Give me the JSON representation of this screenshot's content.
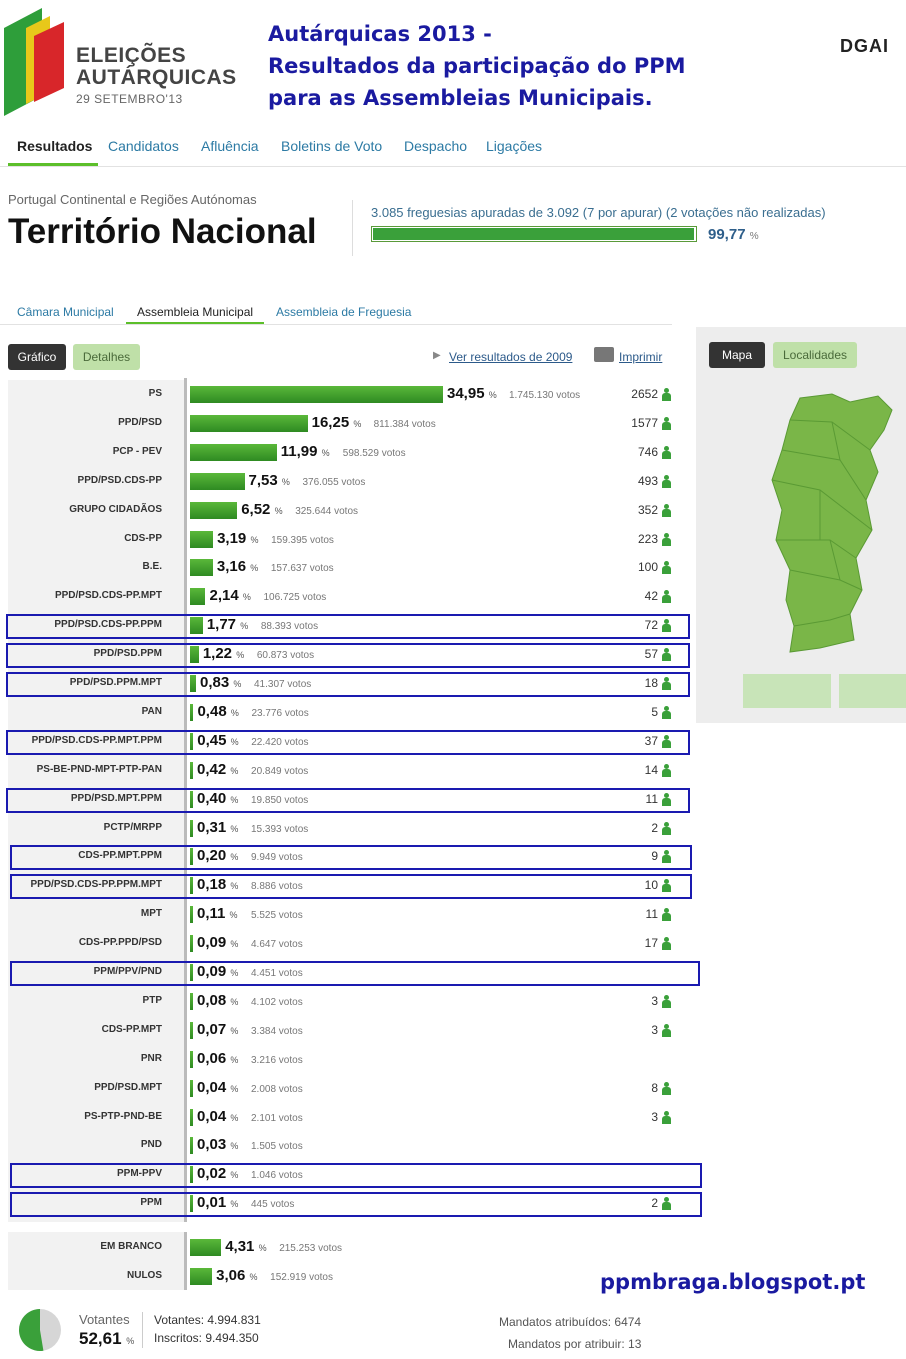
{
  "header": {
    "logo_line1": "ELEIÇÕES",
    "logo_line2": "AUTÁRQUICAS",
    "logo_line3": "29 SETEMBRO'13",
    "headline1": "Autárquicas 2013 -",
    "headline2": "Resultados da participação do PPM",
    "headline3": "para as Assembleias Municipais.",
    "org_logo": "DGAI"
  },
  "nav": {
    "items": [
      "Resultados",
      "Candidatos",
      "Afluência",
      "Boletins de Voto",
      "Despacho",
      "Ligações"
    ],
    "active": 0
  },
  "territory": {
    "region": "Portugal Continental e Regiões Autónomas",
    "title": "Território Nacional",
    "freguesias_text": "3.085 freguesias apuradas de 3.092 (7 por apurar)  (2 votações não realizadas)",
    "progress_percent": 99.77,
    "progress_label": "99,77",
    "progress_unit": "%"
  },
  "subtabs": {
    "items": [
      "Câmara Municipal",
      "Assembleia Municipal",
      "Assembleia de Freguesia"
    ],
    "active": 1
  },
  "toolbar": {
    "grafico": "Gráfico",
    "detalhes": "Detalhes",
    "ver_resultados": "Ver resultados de 2009",
    "imprimir": "Imprimir",
    "mapa": "Mapa",
    "localidades": "Localidades"
  },
  "results": [
    {
      "party": "PS",
      "pct": 34.95,
      "pct_label": "34,95",
      "votes": "1.745.130 votos",
      "mandates": "2652",
      "highlight": false
    },
    {
      "party": "PPD/PSD",
      "pct": 16.25,
      "pct_label": "16,25",
      "votes": "811.384 votos",
      "mandates": "1577",
      "highlight": false
    },
    {
      "party": "PCP - PEV",
      "pct": 11.99,
      "pct_label": "11,99",
      "votes": "598.529 votos",
      "mandates": "746",
      "highlight": false
    },
    {
      "party": "PPD/PSD.CDS-PP",
      "pct": 7.53,
      "pct_label": "7,53",
      "votes": "376.055 votos",
      "mandates": "493",
      "highlight": false
    },
    {
      "party": "GRUPO CIDADÃOS",
      "pct": 6.52,
      "pct_label": "6,52",
      "votes": "325.644 votos",
      "mandates": "352",
      "highlight": false
    },
    {
      "party": "CDS-PP",
      "pct": 3.19,
      "pct_label": "3,19",
      "votes": "159.395 votos",
      "mandates": "223",
      "highlight": false
    },
    {
      "party": "B.E.",
      "pct": 3.16,
      "pct_label": "3,16",
      "votes": "157.637 votos",
      "mandates": "100",
      "highlight": false
    },
    {
      "party": "PPD/PSD.CDS-PP.MPT",
      "pct": 2.14,
      "pct_label": "2,14",
      "votes": "106.725 votos",
      "mandates": "42",
      "highlight": false
    },
    {
      "party": "PPD/PSD.CDS-PP.PPM",
      "pct": 1.77,
      "pct_label": "1,77",
      "votes": "88.393 votos",
      "mandates": "72",
      "highlight": true
    },
    {
      "party": "PPD/PSD.PPM",
      "pct": 1.22,
      "pct_label": "1,22",
      "votes": "60.873 votos",
      "mandates": "57",
      "highlight": true
    },
    {
      "party": "PPD/PSD.PPM.MPT",
      "pct": 0.83,
      "pct_label": "0,83",
      "votes": "41.307 votos",
      "mandates": "18",
      "highlight": true
    },
    {
      "party": "PAN",
      "pct": 0.48,
      "pct_label": "0,48",
      "votes": "23.776 votos",
      "mandates": "5",
      "highlight": false
    },
    {
      "party": "PPD/PSD.CDS-PP.MPT.PPM",
      "pct": 0.45,
      "pct_label": "0,45",
      "votes": "22.420 votos",
      "mandates": "37",
      "highlight": true
    },
    {
      "party": "PS-BE-PND-MPT-PTP-PAN",
      "pct": 0.42,
      "pct_label": "0,42",
      "votes": "20.849 votos",
      "mandates": "14",
      "highlight": false
    },
    {
      "party": "PPD/PSD.MPT.PPM",
      "pct": 0.4,
      "pct_label": "0,40",
      "votes": "19.850 votos",
      "mandates": "11",
      "highlight": true
    },
    {
      "party": "PCTP/MRPP",
      "pct": 0.31,
      "pct_label": "0,31",
      "votes": "15.393 votos",
      "mandates": "2",
      "highlight": false
    },
    {
      "party": "CDS-PP.MPT.PPM",
      "pct": 0.2,
      "pct_label": "0,20",
      "votes": "9.949 votos",
      "mandates": "9",
      "highlight": true
    },
    {
      "party": "PPD/PSD.CDS-PP.PPM.MPT",
      "pct": 0.18,
      "pct_label": "0,18",
      "votes": "8.886 votos",
      "mandates": "10",
      "highlight": true
    },
    {
      "party": "MPT",
      "pct": 0.11,
      "pct_label": "0,11",
      "votes": "5.525 votos",
      "mandates": "11",
      "highlight": false
    },
    {
      "party": "CDS-PP.PPD/PSD",
      "pct": 0.09,
      "pct_label": "0,09",
      "votes": "4.647 votos",
      "mandates": "17",
      "highlight": false
    },
    {
      "party": "PPM/PPV/PND",
      "pct": 0.09,
      "pct_label": "0,09",
      "votes": "4.451 votos",
      "mandates": "",
      "highlight": true
    },
    {
      "party": "PTP",
      "pct": 0.08,
      "pct_label": "0,08",
      "votes": "4.102 votos",
      "mandates": "3",
      "highlight": false
    },
    {
      "party": "CDS-PP.MPT",
      "pct": 0.07,
      "pct_label": "0,07",
      "votes": "3.384 votos",
      "mandates": "3",
      "highlight": false
    },
    {
      "party": "PNR",
      "pct": 0.06,
      "pct_label": "0,06",
      "votes": "3.216 votos",
      "mandates": "",
      "highlight": false
    },
    {
      "party": "PPD/PSD.MPT",
      "pct": 0.04,
      "pct_label": "0,04",
      "votes": "2.008 votos",
      "mandates": "8",
      "highlight": false
    },
    {
      "party": "PS-PTP-PND-BE",
      "pct": 0.04,
      "pct_label": "0,04",
      "votes": "2.101 votos",
      "mandates": "3",
      "highlight": false
    },
    {
      "party": "PND",
      "pct": 0.03,
      "pct_label": "0,03",
      "votes": "1.505 votos",
      "mandates": "",
      "highlight": false
    },
    {
      "party": "PPM-PPV",
      "pct": 0.02,
      "pct_label": "0,02",
      "votes": "1.046 votos",
      "mandates": "",
      "highlight": true
    },
    {
      "party": "PPM",
      "pct": 0.01,
      "pct_label": "0,01",
      "votes": "445 votos",
      "mandates": "2",
      "highlight": true
    }
  ],
  "others": [
    {
      "party": "EM BRANCO",
      "pct": 4.31,
      "pct_label": "4,31",
      "votes": "215.253 votos"
    },
    {
      "party": "NULOS",
      "pct": 3.06,
      "pct_label": "3,06",
      "votes": "152.919 votos"
    }
  ],
  "blog": "ppmbraga.blogspot.pt",
  "summary": {
    "votantes_label": "Votantes",
    "turnout_pct": 52.61,
    "turnout_label": "52,61",
    "votantes_text": "Votantes: 4.994.831",
    "inscritos_text": "Inscritos: 9.494.350",
    "mandatos_atribuidos": "Mandatos atribuídos: 6474",
    "mandatos_por_atribuir": "Mandatos por atribuir: 13"
  },
  "colors": {
    "accent_green": "#5cbf2a",
    "bar_green": "#3aa03a",
    "highlight_blue": "#1a1ab0",
    "headline_blue": "#1a1aa0",
    "map_green": "#7ab648"
  }
}
